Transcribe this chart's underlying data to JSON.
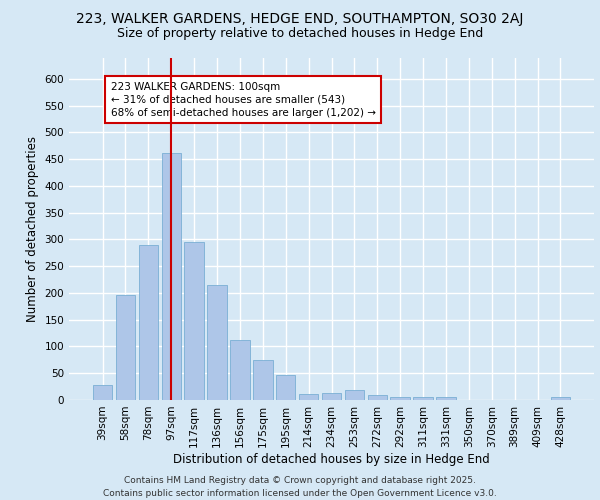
{
  "title_line1": "223, WALKER GARDENS, HEDGE END, SOUTHAMPTON, SO30 2AJ",
  "title_line2": "Size of property relative to detached houses in Hedge End",
  "xlabel": "Distribution of detached houses by size in Hedge End",
  "ylabel": "Number of detached properties",
  "categories": [
    "39sqm",
    "58sqm",
    "78sqm",
    "97sqm",
    "117sqm",
    "136sqm",
    "156sqm",
    "175sqm",
    "195sqm",
    "214sqm",
    "234sqm",
    "253sqm",
    "272sqm",
    "292sqm",
    "311sqm",
    "331sqm",
    "350sqm",
    "370sqm",
    "389sqm",
    "409sqm",
    "428sqm"
  ],
  "values": [
    28,
    197,
    290,
    462,
    295,
    215,
    112,
    75,
    46,
    12,
    14,
    18,
    9,
    5,
    6,
    5,
    0,
    0,
    0,
    0,
    5
  ],
  "bar_color": "#aec6e8",
  "bar_edge_color": "#7aafd4",
  "vline_x_index": 3,
  "vline_color": "#cc0000",
  "annotation_text": "223 WALKER GARDENS: 100sqm\n← 31% of detached houses are smaller (543)\n68% of semi-detached houses are larger (1,202) →",
  "annotation_box_color": "#ffffff",
  "annotation_box_edge": "#cc0000",
  "bg_color": "#d6e8f5",
  "plot_bg_color": "#d6e8f5",
  "footer_text": "Contains HM Land Registry data © Crown copyright and database right 2025.\nContains public sector information licensed under the Open Government Licence v3.0.",
  "ylim": [
    0,
    640
  ],
  "yticks": [
    0,
    50,
    100,
    150,
    200,
    250,
    300,
    350,
    400,
    450,
    500,
    550,
    600
  ],
  "grid_color": "#ffffff",
  "title_fontsize": 10,
  "subtitle_fontsize": 9,
  "axis_label_fontsize": 8.5,
  "tick_fontsize": 7.5,
  "annotation_fontsize": 7.5,
  "footer_fontsize": 6.5
}
